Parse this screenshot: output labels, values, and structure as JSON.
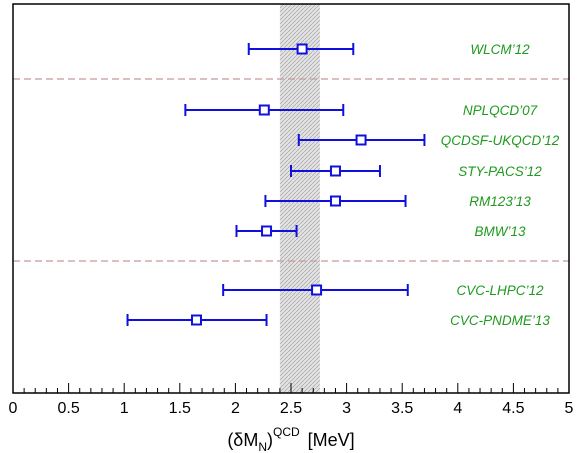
{
  "chart_data": {
    "type": "scatter",
    "orientation": "horizontal-error-bars",
    "xlabel": {
      "main": "(δM",
      "subscript": "N",
      "close": ")",
      "superscript": "QCD",
      "unit": "[MeV]"
    },
    "xlim": [
      0,
      5
    ],
    "x_ticks": [
      "0",
      "0.5",
      "1",
      "1.5",
      "2",
      "2.5",
      "3",
      "3.5",
      "4",
      "4.5",
      "5"
    ],
    "grid": false,
    "band": {
      "x_min": 2.4,
      "x_max": 2.76
    },
    "separators": [
      {
        "after_group": 1
      },
      {
        "after_group": 2
      }
    ],
    "points": [
      {
        "label": "WLCM’12",
        "value": 2.6,
        "err_low": 2.12,
        "err_high": 3.06,
        "group": 1
      },
      {
        "label": "NPLQCD’07",
        "value": 2.26,
        "err_low": 1.55,
        "err_high": 2.97,
        "group": 2
      },
      {
        "label": "QCDSF-UKQCD’12",
        "value": 3.13,
        "err_low": 2.57,
        "err_high": 3.7,
        "group": 2
      },
      {
        "label": "STY-PACS’12",
        "value": 2.9,
        "err_low": 2.5,
        "err_high": 3.3,
        "group": 2
      },
      {
        "label": "RM123’13",
        "value": 2.9,
        "err_low": 2.27,
        "err_high": 3.53,
        "group": 2
      },
      {
        "label": "BMW’13",
        "value": 2.28,
        "err_low": 2.01,
        "err_high": 2.55,
        "group": 2
      },
      {
        "label": "CVC-LHPC’12",
        "value": 2.73,
        "err_low": 1.89,
        "err_high": 3.55,
        "group": 3
      },
      {
        "label": "CVC-PNDME’13",
        "value": 1.65,
        "err_low": 1.03,
        "err_high": 2.28,
        "group": 3
      }
    ],
    "colors": {
      "points": "#1010dd",
      "labels": "#1e9a1e",
      "separator": "#c89a9a",
      "band": "#d9d9d9"
    }
  }
}
